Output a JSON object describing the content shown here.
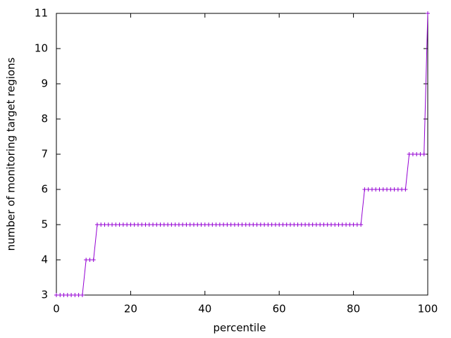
{
  "chart_data": {
    "type": "line",
    "xlabel": "percentile",
    "ylabel": "number of monitoring target regions",
    "x": [
      0,
      1,
      2,
      3,
      4,
      5,
      6,
      7,
      8,
      9,
      10,
      11,
      12,
      13,
      14,
      15,
      16,
      17,
      18,
      19,
      20,
      21,
      22,
      23,
      24,
      25,
      26,
      27,
      28,
      29,
      30,
      31,
      32,
      33,
      34,
      35,
      36,
      37,
      38,
      39,
      40,
      41,
      42,
      43,
      44,
      45,
      46,
      47,
      48,
      49,
      50,
      51,
      52,
      53,
      54,
      55,
      56,
      57,
      58,
      59,
      60,
      61,
      62,
      63,
      64,
      65,
      66,
      67,
      68,
      69,
      70,
      71,
      72,
      73,
      74,
      75,
      76,
      77,
      78,
      79,
      80,
      81,
      82,
      83,
      84,
      85,
      86,
      87,
      88,
      89,
      90,
      91,
      92,
      93,
      94,
      95,
      96,
      97,
      98,
      99,
      100
    ],
    "values": [
      3,
      3,
      3,
      3,
      3,
      3,
      3,
      3,
      4,
      4,
      4,
      5,
      5,
      5,
      5,
      5,
      5,
      5,
      5,
      5,
      5,
      5,
      5,
      5,
      5,
      5,
      5,
      5,
      5,
      5,
      5,
      5,
      5,
      5,
      5,
      5,
      5,
      5,
      5,
      5,
      5,
      5,
      5,
      5,
      5,
      5,
      5,
      5,
      5,
      5,
      5,
      5,
      5,
      5,
      5,
      5,
      5,
      5,
      5,
      5,
      5,
      5,
      5,
      5,
      5,
      5,
      5,
      5,
      5,
      5,
      5,
      5,
      5,
      5,
      5,
      5,
      5,
      5,
      5,
      5,
      5,
      5,
      5,
      6,
      6,
      6,
      6,
      6,
      6,
      6,
      6,
      6,
      6,
      6,
      6,
      7,
      7,
      7,
      7,
      7,
      11
    ],
    "color": "#9400d3",
    "xlim": [
      0,
      100
    ],
    "xticks": [
      0,
      20,
      40,
      60,
      80,
      100
    ],
    "ylim": [
      3,
      11
    ],
    "yticks": [
      3,
      4,
      5,
      6,
      7,
      8,
      9,
      10,
      11
    ]
  }
}
